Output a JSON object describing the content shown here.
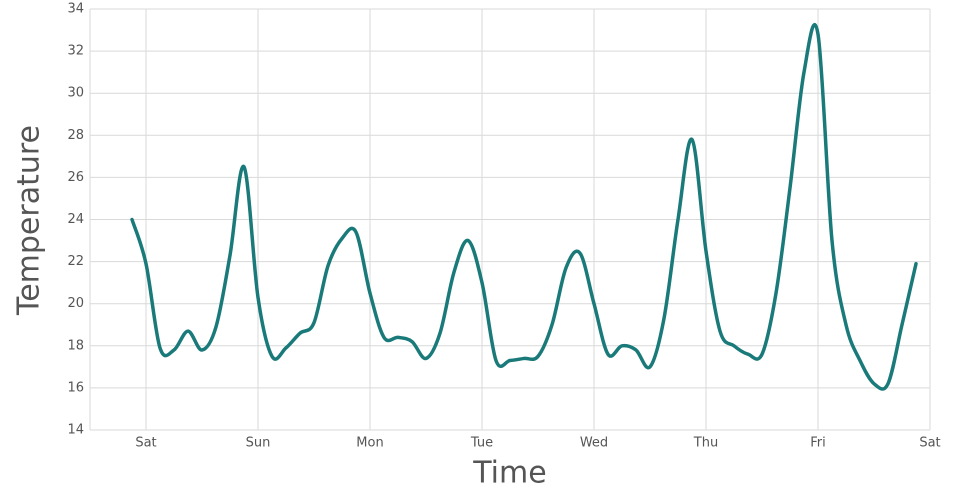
{
  "chart_data": {
    "type": "line",
    "x_label": "Time",
    "y_label": "Temperature",
    "categories": [
      null,
      "Sat",
      null,
      null,
      null,
      null,
      null,
      null,
      null,
      "Sun",
      null,
      null,
      null,
      null,
      null,
      null,
      null,
      "Mon",
      null,
      null,
      null,
      null,
      null,
      null,
      null,
      "Tue",
      null,
      null,
      null,
      null,
      null,
      null,
      null,
      "Wed",
      null,
      null,
      null,
      null,
      null,
      null,
      null,
      "Thu",
      null,
      null,
      null,
      null,
      null,
      null,
      null,
      "Fri",
      null,
      null,
      null,
      null,
      null,
      null,
      null,
      "Sat"
    ],
    "series": [
      {
        "name": "Temperature",
        "color": "#1a7a7a",
        "values": [
          24.0,
          21.9,
          17.9,
          17.8,
          18.7,
          17.8,
          18.9,
          22.3,
          26.5,
          20.3,
          17.5,
          17.9,
          18.6,
          19.1,
          21.8,
          23.1,
          23.4,
          20.5,
          18.4,
          18.4,
          18.2,
          17.4,
          18.6,
          21.5,
          23.0,
          21.0,
          17.3,
          17.3,
          17.4,
          17.5,
          19.0,
          21.7,
          22.4,
          20.0,
          17.6,
          18.0,
          17.8,
          17.0,
          19.3,
          24.0,
          27.8,
          22.5,
          18.7,
          18.0,
          17.6,
          17.6,
          20.5,
          25.5,
          31.0,
          32.8,
          23.0,
          19.0,
          17.3,
          16.2,
          16.2,
          19.0,
          21.9,
          null
        ]
      }
    ],
    "ylim": [
      14,
      34
    ],
    "yticks": [
      14,
      16,
      18,
      20,
      22,
      24,
      26,
      28,
      30,
      32,
      34
    ],
    "grid": true
  }
}
